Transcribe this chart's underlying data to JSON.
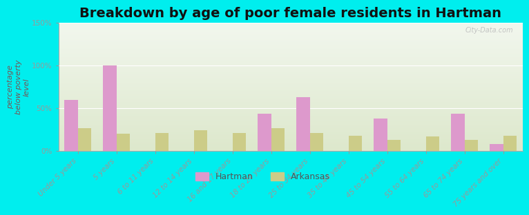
{
  "title": "Breakdown by age of poor female residents in Hartman",
  "ylabel": "percentage\nbelow poverty\nlevel",
  "categories": [
    "Under 5 years",
    "5 years",
    "6 to 11 years",
    "12 to 14 years",
    "16 and 17 years",
    "18 to 24 years",
    "25 to 34 years",
    "35 to 44 years",
    "45 to 54 years",
    "55 to 64 years",
    "65 to 74 years",
    "75 years and over"
  ],
  "hartman_values": [
    60,
    100,
    0,
    0,
    0,
    44,
    63,
    0,
    38,
    0,
    44,
    8
  ],
  "arkansas_values": [
    27,
    20,
    21,
    24,
    21,
    27,
    21,
    18,
    13,
    17,
    13,
    18
  ],
  "hartman_color": "#dd99cc",
  "arkansas_color": "#cccc88",
  "background_color": "#00eeee",
  "plot_bg_top": "#f2f7ee",
  "plot_bg_bottom": "#dde8cc",
  "ylim": [
    0,
    150
  ],
  "yticks": [
    0,
    50,
    100,
    150
  ],
  "ytick_labels": [
    "0%",
    "50%",
    "100%",
    "150%"
  ],
  "title_fontsize": 14,
  "axis_label_fontsize": 8,
  "tick_fontsize": 7.5,
  "legend_labels": [
    "Hartman",
    "Arkansas"
  ],
  "bar_width": 0.35,
  "watermark": "City-Data.com"
}
